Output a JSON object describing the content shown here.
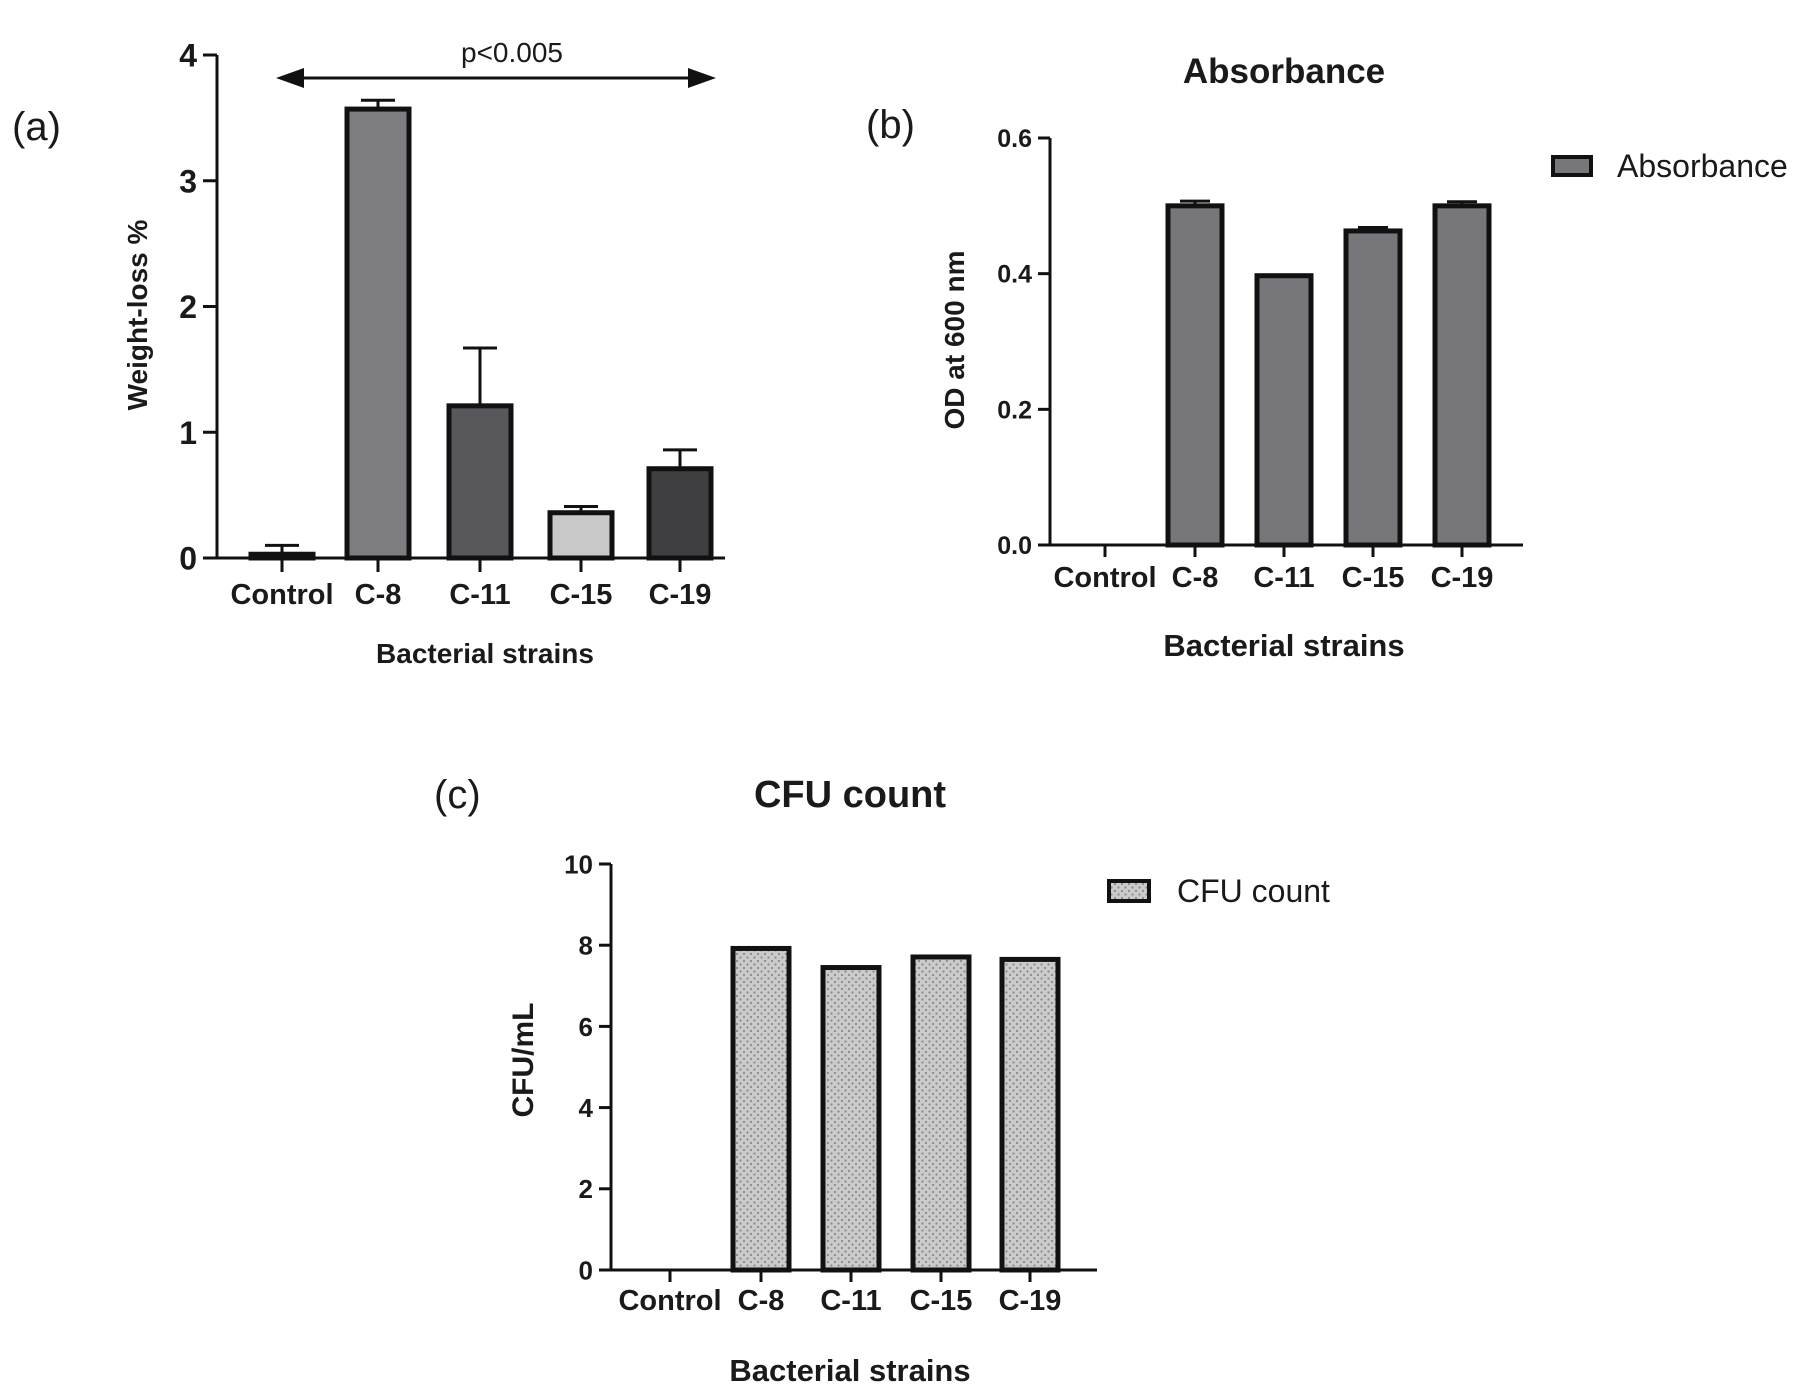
{
  "chart_data": [
    {
      "panel_label": "(a)",
      "type": "bar",
      "title": "",
      "xlabel": "Bacterial strains",
      "ylabel": "Weight-loss %",
      "categories": [
        "Control",
        "C-8",
        "C-11",
        "C-15",
        "C-19"
      ],
      "values": [
        0.03,
        3.57,
        1.21,
        0.36,
        0.71
      ],
      "errors": [
        0.07,
        0.07,
        0.46,
        0.05,
        0.15
      ],
      "bar_colors": [
        "#9a9a9e",
        "#7d7d82",
        "#58585c",
        "#c8c8c8",
        "#3f3f42"
      ],
      "ylim": [
        0,
        4
      ],
      "yticks": [
        "0",
        "1",
        "2",
        "3",
        "4"
      ],
      "annotation": "p<0.005",
      "grid": false,
      "legend": null
    },
    {
      "panel_label": "(b)",
      "type": "bar",
      "title": "Absorbance",
      "xlabel": "Bacterial strains",
      "ylabel": "OD at 600 nm",
      "categories": [
        "Control",
        "C-8",
        "C-11",
        "C-15",
        "C-19"
      ],
      "series": [
        {
          "name": "Absorbance",
          "values": [
            0,
            0.5,
            0.397,
            0.463,
            0.5
          ],
          "errors": [
            0,
            0.007,
            0,
            0.005,
            0.006
          ],
          "color": "#77777b"
        }
      ],
      "ylim": [
        0,
        0.6
      ],
      "yticks": [
        "0.0",
        "0.2",
        "0.4",
        "0.6"
      ],
      "grid": false,
      "legend": "top-right"
    },
    {
      "panel_label": "(c)",
      "type": "bar",
      "title": "CFU count",
      "xlabel": "Bacterial strains",
      "ylabel": "CFU/mL",
      "categories": [
        "Control",
        "C-8",
        "C-11",
        "C-15",
        "C-19"
      ],
      "series": [
        {
          "name": "CFU count",
          "values": [
            0,
            7.92,
            7.45,
            7.71,
            7.65
          ],
          "color": "#c9c9c9",
          "pattern": "dotted"
        }
      ],
      "ylim": [
        0,
        10
      ],
      "yticks": [
        "0",
        "2",
        "4",
        "6",
        "8",
        "10"
      ],
      "grid": false,
      "legend": "top-right"
    }
  ]
}
